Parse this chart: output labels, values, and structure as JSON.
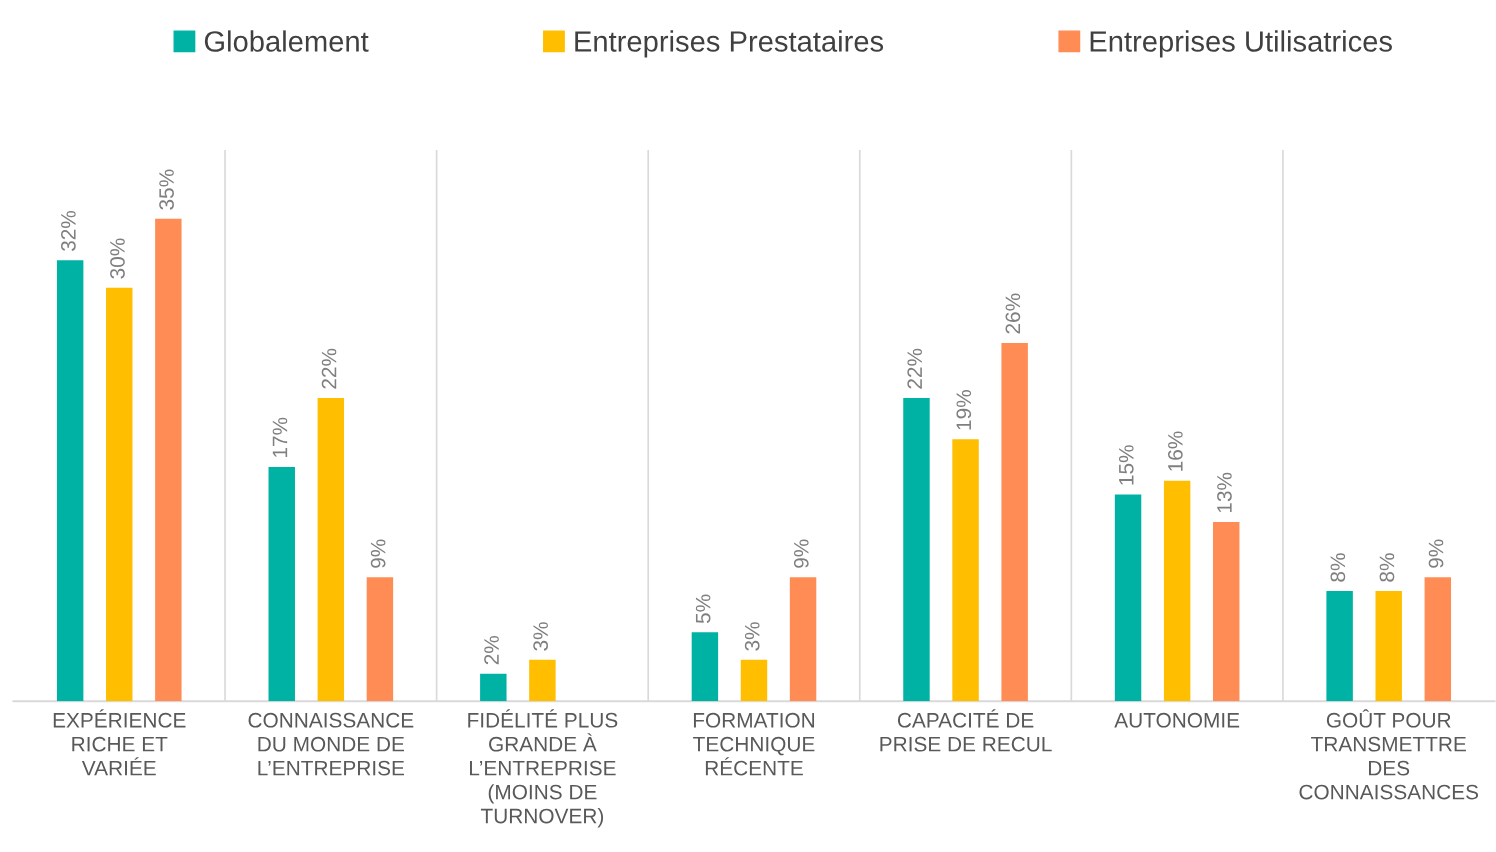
{
  "chart_data": {
    "type": "bar",
    "categories": [
      "EXPÉRIENCE\nRICHE ET\nVARIÉE",
      "CONNAISSANCE\nDU MONDE DE\nL’ENTREPRISE",
      "FIDÉLITÉ PLUS\nGRANDE À\nL’ENTREPRISE\n(MOINS DE\nTURNOVER)",
      "FORMATION\nTECHNIQUE\nRÉCENTE",
      "CAPACITÉ DE\nPRISE DE RECUL",
      "AUTONOMIE",
      "GOÛT POUR\nTRANSMETTRE\nDES\nCONNAISSANCES"
    ],
    "series": [
      {
        "name": "Globalement",
        "color": "#00b2a4",
        "values": [
          32,
          17,
          2,
          5,
          22,
          15,
          8
        ],
        "value_labels": [
          "32%",
          "17%",
          "2%",
          "5%",
          "22%",
          "15%",
          "8%"
        ]
      },
      {
        "name": "Entreprises Prestataires",
        "color": "#ffbe00",
        "values": [
          30,
          22,
          3,
          3,
          19,
          16,
          8
        ],
        "value_labels": [
          "30%",
          "22%",
          "3%",
          "3%",
          "19%",
          "16%",
          "8%"
        ]
      },
      {
        "name": "Entreprises Utilisatrices",
        "color": "#ff8c55",
        "values": [
          35,
          9,
          null,
          9,
          26,
          13,
          9
        ],
        "value_labels": [
          "35%",
          "9%",
          null,
          "9%",
          "26%",
          "13%",
          "9%"
        ]
      }
    ],
    "ylim": [
      0,
      40
    ],
    "tick_labels": "x",
    "grid": "x",
    "legend": "top"
  }
}
